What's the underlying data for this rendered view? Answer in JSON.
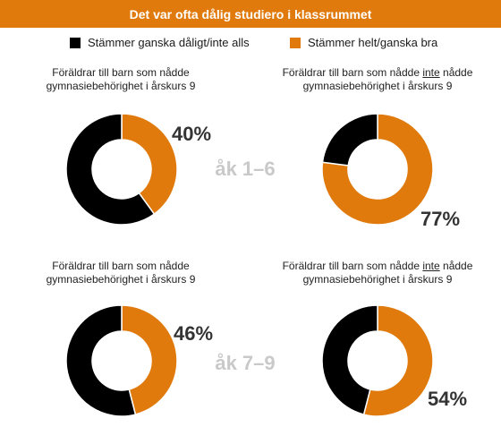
{
  "header": {
    "title": "Det var ofta dålig studiero i klassrummet"
  },
  "legend": [
    {
      "label": "Stämmer ganska dåligt/inte alls",
      "color": "#000000"
    },
    {
      "label": "Stämmer helt/ganska bra",
      "color": "#e07a0c"
    }
  ],
  "captions": {
    "reached_line1": "Föräldrar till barn som nådde",
    "not_prefix": "Föräldrar till barn som nådde ",
    "not_word": "inte",
    "not_suffix": " nådde",
    "line2": "gymnasiebehörighet i årskurs 9"
  },
  "chart_data": {
    "type": "pie",
    "title": "Det var ofta dålig studiero i klassrummet",
    "colors": {
      "bad": "#000000",
      "good": "#e07a0c"
    },
    "series_labels": [
      "Stämmer ganska dåligt/inte alls",
      "Stämmer helt/ganska bra"
    ],
    "rows": [
      {
        "grade": "åk 1–6",
        "charts": [
          {
            "group": "Föräldrar till barn som nådde gymnasiebehörighet i årskurs 9",
            "good_pct": 40,
            "bad_pct": 60,
            "label": "40%"
          },
          {
            "group": "Föräldrar till barn som inte nådde gymnasiebehörighet i årskurs 9",
            "good_pct": 77,
            "bad_pct": 23,
            "label": "77%"
          }
        ]
      },
      {
        "grade": "åk 7–9",
        "charts": [
          {
            "group": "Föräldrar till barn som nådde gymnasiebehörighet i årskurs 9",
            "good_pct": 46,
            "bad_pct": 54,
            "label": "46%"
          },
          {
            "group": "Föräldrar till barn som inte nådde gymnasiebehörighet i årskurs 9",
            "good_pct": 54,
            "bad_pct": 46,
            "label": "54%"
          }
        ]
      }
    ]
  }
}
